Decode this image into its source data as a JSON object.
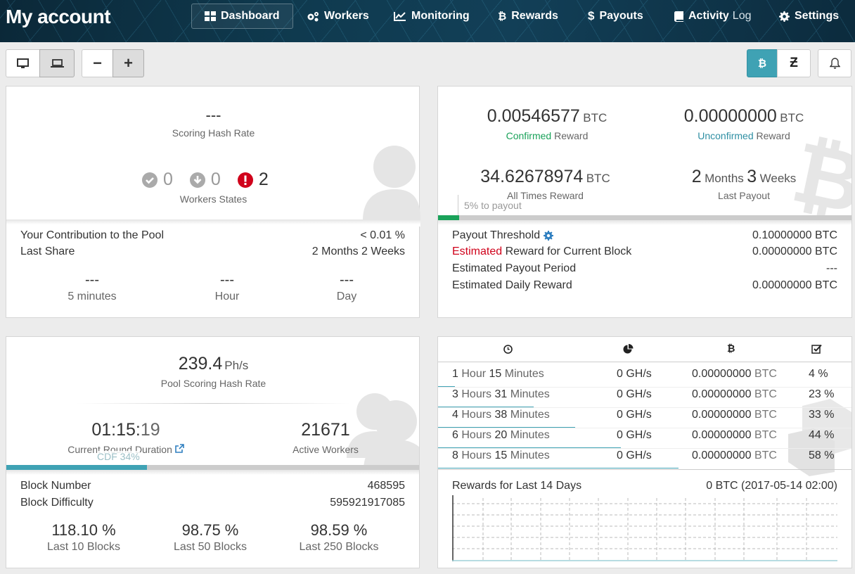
{
  "header": {
    "title": "My account",
    "nav": [
      {
        "label": "Dashboard",
        "icon": "dashboard-icon"
      },
      {
        "label": "Workers",
        "icon": "gears-icon"
      },
      {
        "label": "Monitoring",
        "icon": "chart-line-icon"
      },
      {
        "label": "Rewards",
        "icon": "bitcoin-icon"
      },
      {
        "label": "Payouts",
        "icon": "dollar-icon"
      },
      {
        "label_main": "Activity",
        "label_light": "Log",
        "icon": "book-icon"
      },
      {
        "label": "Settings",
        "icon": "gear-icon"
      }
    ]
  },
  "toolbar": {
    "view_buttons": [
      "desktop-icon",
      "laptop-icon"
    ],
    "zoom_out": "−",
    "zoom_in": "+",
    "currency_buttons": [
      "bitcoin-icon",
      "zcash-icon"
    ],
    "notifications": "bell-icon"
  },
  "worker_panel": {
    "scoring_hash_rate": "---",
    "scoring_hash_rate_label": "Scoring Hash Rate",
    "states": {
      "ok": "0",
      "down": "0",
      "error": "2"
    },
    "states_label": "Workers States",
    "contribution_label": "Your Contribution to the Pool",
    "contribution_value": "< 0.01 %",
    "last_share_label": "Last Share",
    "last_share_value": "2 Months 2 Weeks",
    "rates": [
      {
        "value": "---",
        "label": "5 minutes"
      },
      {
        "value": "---",
        "label": "Hour"
      },
      {
        "value": "---",
        "label": "Day"
      }
    ]
  },
  "reward_panel": {
    "confirmed_value": "0.00546577",
    "confirmed_unit": "BTC",
    "confirmed_label_accent": "Confirmed",
    "confirmed_label_rest": "Reward",
    "unconfirmed_value": "0.00000000",
    "unconfirmed_unit": "BTC",
    "unconfirmed_label_accent": "Unconfirmed",
    "unconfirmed_label_rest": "Reward",
    "all_time_value": "34.62678974",
    "all_time_unit": "BTC",
    "all_time_label": "All Times Reward",
    "last_payout_n1": "2",
    "last_payout_u1": "Months",
    "last_payout_n2": "3",
    "last_payout_u2": "Weeks",
    "last_payout_label": "Last Payout",
    "payout_progress_label": "5% to payout",
    "payout_progress": 0.05,
    "threshold_label": "Payout Threshold",
    "threshold_value": "0.10000000 BTC",
    "estimated_accent": "Estimated",
    "estimated_rest": "Reward for Current Block",
    "estimated_value": "0.00000000 BTC",
    "payout_period_label": "Estimated Payout Period",
    "payout_period_value": "---",
    "daily_label": "Estimated Daily Reward",
    "daily_value": "0.00000000 BTC"
  },
  "pool_panel": {
    "hash_rate": "239.4",
    "hash_rate_unit": "Ph/s",
    "hash_rate_label": "Pool Scoring Hash Rate",
    "round_duration_main": "01:15:",
    "round_duration_sec": "19",
    "round_duration_label": "Current Round Duration",
    "active_workers": "21671",
    "active_workers_label": "Active Workers",
    "cdf_label": "CDF 34%",
    "cdf": 0.34,
    "block_number_label": "Block Number",
    "block_number": "468595",
    "block_difficulty_label": "Block Difficulty",
    "block_difficulty": "595921917085",
    "luck": [
      {
        "value": "118.10 %",
        "label": "Last 10 Blocks"
      },
      {
        "value": "98.75 %",
        "label": "Last 50 Blocks"
      },
      {
        "value": "98.59 %",
        "label": "Last 250 Blocks"
      }
    ]
  },
  "blocks_table": {
    "headers": [
      "clock-icon",
      "pie-chart-icon",
      "bitcoin-icon",
      "check-square-icon"
    ],
    "rows": [
      {
        "n": "1",
        "u": "Hour",
        "n2": "15",
        "u2": "Minutes",
        "hash": "0 GH/s",
        "btc": "0.00000000",
        "unit": "BTC",
        "pct": "4 %",
        "frac": 0.04
      },
      {
        "n": "3",
        "u": "Hours",
        "n2": "31",
        "u2": "Minutes",
        "hash": "0 GH/s",
        "btc": "0.00000000",
        "unit": "BTC",
        "pct": "23 %",
        "frac": 0.23
      },
      {
        "n": "4",
        "u": "Hours",
        "n2": "38",
        "u2": "Minutes",
        "hash": "0 GH/s",
        "btc": "0.00000000",
        "unit": "BTC",
        "pct": "33 %",
        "frac": 0.33
      },
      {
        "n": "6",
        "u": "Hours",
        "n2": "20",
        "u2": "Minutes",
        "hash": "0 GH/s",
        "btc": "0.00000000",
        "unit": "BTC",
        "pct": "44 %",
        "frac": 0.44
      },
      {
        "n": "8",
        "u": "Hours",
        "n2": "15",
        "u2": "Minutes",
        "hash": "0 GH/s",
        "btc": "0.00000000",
        "unit": "BTC",
        "pct": "58 %",
        "frac": 0.58
      }
    ],
    "rewards_label": "Rewards for Last 14 Days",
    "rewards_value": "0 BTC (2017-05-14 02:00)"
  },
  "colors": {
    "accent": "#3fa2b4",
    "confirmed": "#1aa25a",
    "unconfirmed": "#2f8fa3",
    "error": "#d0021b",
    "info_icon": "#2f7fc0"
  }
}
